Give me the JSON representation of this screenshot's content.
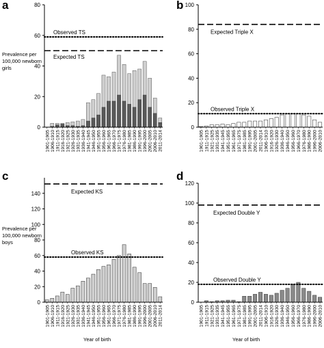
{
  "labels": {
    "prevalence_girls": "Prevalence per 100,000 newborn girls",
    "prevalence_boys": "Prevalence per 100,000 newborn boys",
    "year_of_birth": "Year of birth"
  },
  "colors": {
    "light_bar": "#cfcfcf",
    "dark_bar": "#5a5a5a",
    "white_bar": "#ffffff",
    "medium_bar": "#8a8a8a",
    "axis": "#000000"
  },
  "chart_data": [
    {
      "panel": "a",
      "type": "bar",
      "stacked": true,
      "categories": [
        "1901-1905",
        "1906-1910",
        "1911-1915",
        "1916-1920",
        "1921-1925",
        "1926-1930",
        "1931-1935",
        "1936-1940",
        "1941-1945",
        "1946-1950",
        "1951-1955",
        "1956-1960",
        "1961-1965",
        "1966-1970",
        "1971-1975",
        "1976-1980",
        "1981-1985",
        "1986-1990",
        "1991-1995",
        "1996-2000",
        "2001-2005",
        "2006-2010",
        "2011-2014"
      ],
      "x_tick_labels": [
        "1901-1905",
        "1906-1910",
        "1911-1915",
        "1916-1920",
        "1921-1925",
        "1926-1930",
        "1931-1935",
        "1936-1940",
        "1941-1945",
        "1946-1950",
        "1951-1955",
        "1956-1960",
        "1961-1965",
        "1966-1970",
        "1971-1975",
        "1976-1980",
        "1981-1985",
        "1986-1990",
        "1991-1995",
        "1996-2000",
        "2001-2005",
        "2006-2010",
        "2011-2014"
      ],
      "series": [
        {
          "values": [
            0,
            0.5,
            1.5,
            2,
            1,
            1,
            0.5,
            1,
            4,
            6,
            8,
            13,
            17,
            17,
            21,
            17,
            15,
            13,
            18,
            21,
            13,
            9,
            3
          ]
        },
        {
          "values": [
            0,
            2.5,
            2.5,
            2.5,
            3,
            3.5,
            4,
            5,
            16,
            18,
            22,
            34,
            33,
            36,
            47,
            41,
            35,
            37,
            38,
            43,
            32,
            19,
            6
          ]
        }
      ],
      "ylim": [
        0,
        80
      ],
      "yticks": [
        0,
        20,
        40,
        60,
        80
      ],
      "reference_lines": [
        {
          "label": "Observed TS",
          "value": 59,
          "style": "dotted"
        },
        {
          "label": "Expected TS",
          "value": 50,
          "style": "dashed"
        }
      ]
    },
    {
      "panel": "b",
      "type": "bar",
      "categories": [
        "1901-1905",
        "1906-1910",
        "1911-1915",
        "1916-1920",
        "1921-1925",
        "1926-1930",
        "1931-1935",
        "1936-1940",
        "1941-1945",
        "1946-1950",
        "1951-1955",
        "1956-1960",
        "1961-1965",
        "1966-1970",
        "1971-1975",
        "1976-1980",
        "1981-1985",
        "1986-1990",
        "1991-1995",
        "1996-2000",
        "2001-2005",
        "2006-2010",
        "2011-2014"
      ],
      "x_tick_labels": [
        "1901-1905",
        "1911-1915",
        "1921-1925",
        "1931-1935",
        "1941-1945",
        "1951-1955",
        "1961-1965",
        "1971-1975",
        "1981-1985",
        "1991-1995",
        "2001-2005",
        "2011-2014",
        "1906-1910",
        "1916-1920",
        "1926-1930",
        "1936-1940",
        "1946-1950",
        "1956-1960",
        "1966-1970",
        "1976-1980",
        "1986-1990",
        "1996-2000",
        "2006-2010"
      ],
      "series": [
        {
          "values": [
            0.5,
            1,
            2,
            2,
            2.5,
            2,
            3,
            4,
            4,
            5,
            5,
            5,
            6,
            7,
            8,
            10,
            11,
            11,
            11,
            10,
            9,
            6,
            4
          ]
        }
      ],
      "ylim": [
        0,
        100
      ],
      "yticks": [
        0,
        20,
        40,
        60,
        80,
        100
      ],
      "reference_lines": [
        {
          "label": "Expected Triple X",
          "value": 84,
          "style": "dashed"
        },
        {
          "label": "Observed Triple X",
          "value": 11,
          "style": "dotted"
        }
      ]
    },
    {
      "panel": "c",
      "type": "bar",
      "categories": [
        "1901-1905",
        "1906-1910",
        "1911-1915",
        "1916-1920",
        "1921-1925",
        "1926-1930",
        "1931-1935",
        "1936-1940",
        "1941-1945",
        "1946-1950",
        "1951-1955",
        "1956-1960",
        "1961-1965",
        "1966-1970",
        "1971-1975",
        "1976-1980",
        "1981-1985",
        "1986-1990",
        "1991-1995",
        "1996-2000",
        "2001-2005",
        "2006-2010",
        "2011-2014"
      ],
      "x_tick_labels": [
        "1901-1905",
        "1906-1910",
        "1911-1915",
        "1916-1920",
        "1921-1925",
        "1926-1930",
        "1931-1935",
        "1936-1940",
        "1941-1945",
        "1946-1950",
        "1951-1955",
        "1956-1960",
        "1961-1965",
        "1966-1970",
        "1971-1975",
        "1976-1980",
        "1981-1985",
        "1986-1990",
        "1991-1995",
        "1996-2000",
        "2001-2005",
        "2006-2010",
        "2011-2014"
      ],
      "series": [
        {
          "values": [
            3,
            5,
            8,
            13,
            10,
            18,
            21,
            27,
            31,
            36,
            42,
            46,
            48,
            55,
            60,
            74,
            62,
            45,
            38,
            24,
            24,
            19,
            7
          ]
        }
      ],
      "ylim": [
        0,
        160
      ],
      "yticks": [
        0,
        20,
        40,
        60,
        80,
        100,
        120,
        140
      ],
      "reference_lines": [
        {
          "label": "Expected KS",
          "value": 152,
          "style": "dashed"
        },
        {
          "label": "Observed KS",
          "value": 58,
          "style": "dotted"
        }
      ]
    },
    {
      "panel": "d",
      "type": "bar",
      "categories": [
        "1901-1905",
        "1906-1910",
        "1911-1915",
        "1916-1920",
        "1921-1925",
        "1926-1930",
        "1931-1935",
        "1936-1940",
        "1941-1945",
        "1946-1950",
        "1951-1955",
        "1956-1960",
        "1961-1965",
        "1966-1970",
        "1971-1975",
        "1976-1980",
        "1981-1985",
        "1986-1990",
        "1991-1995",
        "1996-2000",
        "2001-2005",
        "2006-2010",
        "2011-2014"
      ],
      "x_tick_labels": [
        "1901-1905",
        "1911-1915",
        "1921-1925",
        "1931-1935",
        "1941-1945",
        "1951-1955",
        "1961-1965",
        "1971-1975",
        "1981-1985",
        "1991-1995",
        "2001-2005",
        "2011-2014",
        "1906-1910",
        "1916-1920",
        "1926-1930",
        "1936-1940",
        "1946-1950",
        "1956-1960",
        "1966-1970",
        "1976-1980",
        "1986-1990",
        "1996-2000",
        "2006-2010"
      ],
      "series": [
        {
          "values": [
            0,
            1.5,
            0.5,
            1.5,
            1.5,
            2,
            2,
            0.5,
            6,
            6,
            8,
            10,
            8,
            7,
            9,
            12,
            14,
            18,
            20,
            14,
            11,
            7,
            5
          ]
        }
      ],
      "ylim": [
        0,
        120
      ],
      "yticks": [
        0,
        20,
        40,
        60,
        80,
        100,
        120
      ],
      "reference_lines": [
        {
          "label": "Expected Double Y",
          "value": 98,
          "style": "dashed"
        },
        {
          "label": "Observed Double Y",
          "value": 18,
          "style": "dotted"
        }
      ]
    }
  ]
}
